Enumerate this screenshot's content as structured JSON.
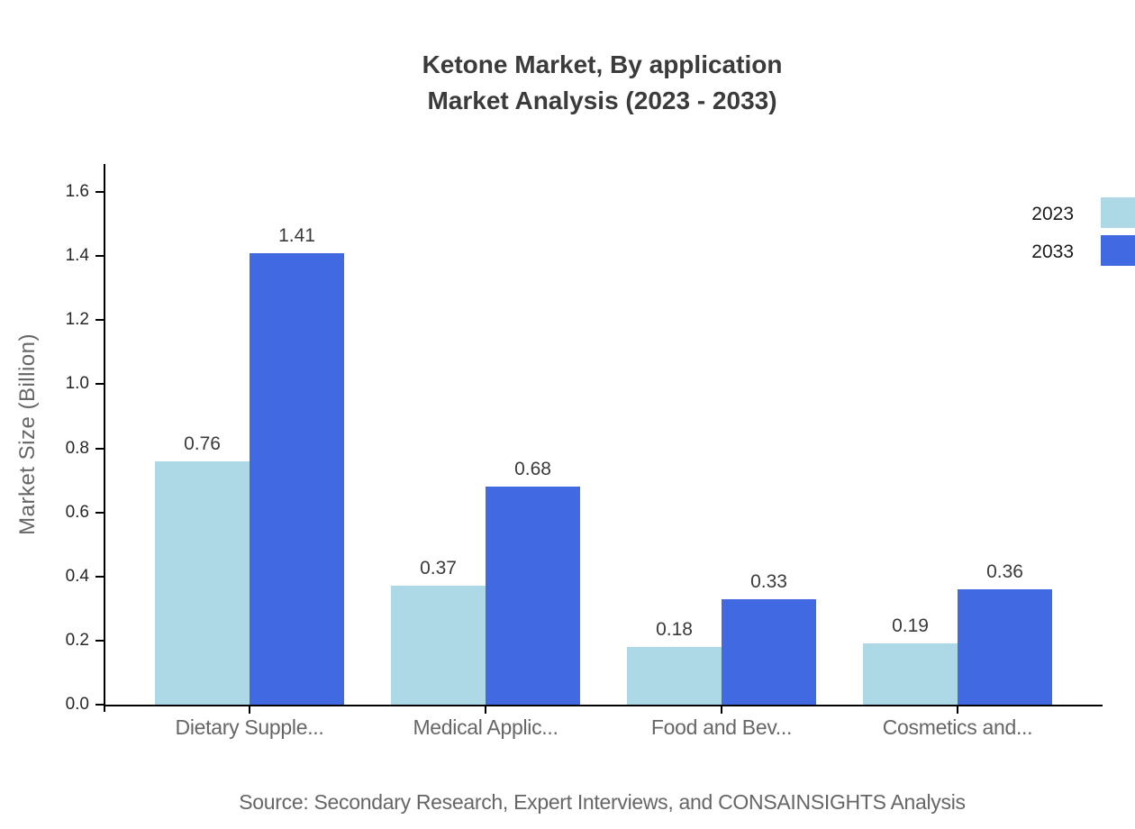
{
  "title": {
    "line1": "Ketone Market, By application",
    "line2": "Market Analysis (2023 - 2033)"
  },
  "source": "Source: Secondary Research, Expert Interviews, and CONSAINSIGHTS Analysis",
  "colors": {
    "series_2023": "#ADD8E6",
    "series_2033": "#4169E1",
    "axis": "#000000",
    "title_text": "#3b3b3b",
    "tick_text": "#262626",
    "muted_text": "#666666"
  },
  "chart_data": {
    "type": "bar",
    "title": "Ketone Market, By application Market Analysis (2023 - 2033)",
    "categories": [
      "Dietary Supple...",
      "Medical Applic...",
      "Food and Bev...",
      "Cosmetics and..."
    ],
    "series": [
      {
        "name": "2023",
        "color": "#ADD8E6",
        "values": [
          0.76,
          0.37,
          0.18,
          0.19
        ]
      },
      {
        "name": "2033",
        "color": "#4169E1",
        "values": [
          1.41,
          0.68,
          0.33,
          0.36
        ]
      }
    ],
    "xlabel": "",
    "ylabel": "Market Size (Billion)",
    "ytick_labels": [
      "0.0",
      "0.2",
      "0.4",
      "0.6",
      "0.8",
      "1.0",
      "1.2",
      "1.4",
      "1.6"
    ],
    "ylim": [
      0,
      1.6875
    ],
    "grid": false,
    "bar_value_labels": true,
    "legend_position": "top-right"
  }
}
